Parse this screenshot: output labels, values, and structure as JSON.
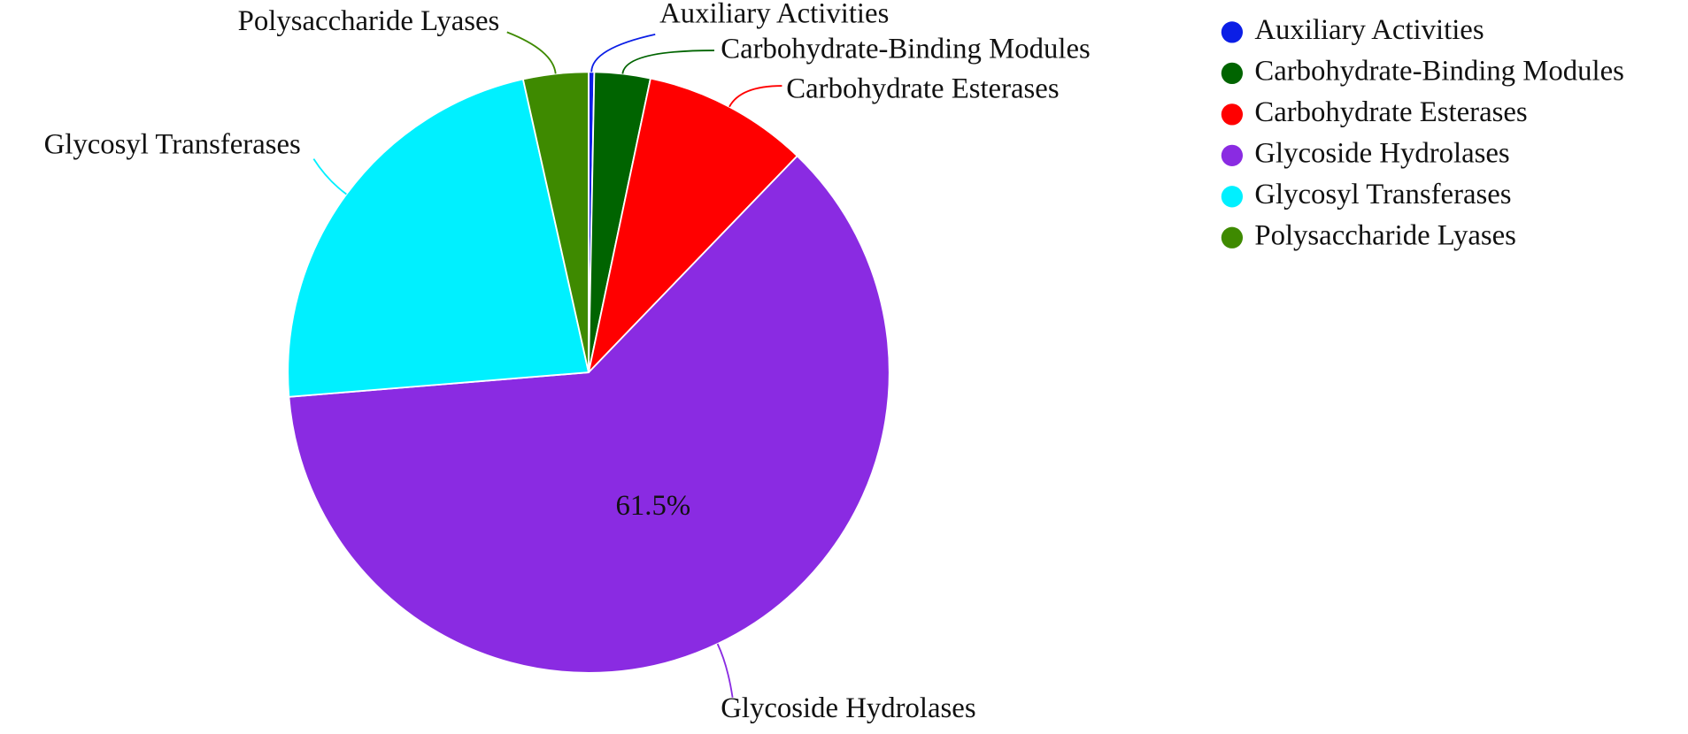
{
  "chart_data": {
    "type": "pie",
    "categories": [
      "Auxiliary Activities",
      "Carbohydrate-Binding Modules",
      "Carbohydrate Esterases",
      "Glycoside Hydrolases",
      "Glycosyl Transferases",
      "Polysaccharide Lyases"
    ],
    "values": [
      0.3,
      3.0,
      8.9,
      61.5,
      22.8,
      3.5
    ],
    "value_labels": [
      null,
      null,
      null,
      "61.5%",
      null,
      null
    ],
    "colors": [
      "#0b1ee6",
      "#006400",
      "#ff0000",
      "#8a2be2",
      "#00f0ff",
      "#3e8a00"
    ],
    "legend": "upper right"
  }
}
